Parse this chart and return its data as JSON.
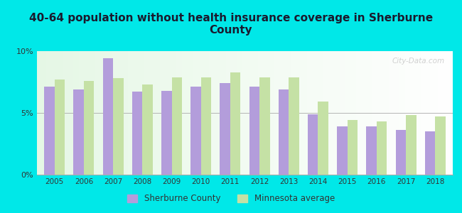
{
  "title": "40-64 population without health insurance coverage in Sherburne\nCounty",
  "years": [
    2005,
    2006,
    2007,
    2008,
    2009,
    2010,
    2011,
    2012,
    2013,
    2014,
    2015,
    2016,
    2017,
    2018
  ],
  "sherburne": [
    7.1,
    6.9,
    9.4,
    6.7,
    6.8,
    7.1,
    7.4,
    7.1,
    6.9,
    4.9,
    3.9,
    3.9,
    3.6,
    3.5
  ],
  "minnesota": [
    7.7,
    7.6,
    7.8,
    7.3,
    7.9,
    7.9,
    8.3,
    7.9,
    7.9,
    5.9,
    4.4,
    4.3,
    4.8,
    4.7
  ],
  "sherburne_color": "#b39ddb",
  "minnesota_color": "#c5e1a5",
  "background_outer": "#00e8e8",
  "ylim": [
    0,
    10
  ],
  "yticks": [
    0,
    5,
    10
  ],
  "ytick_labels": [
    "0%",
    "5%",
    "10%"
  ],
  "legend_sherburne": "Sherburne County",
  "legend_minnesota": "Minnesota average",
  "bar_width": 0.35,
  "title_fontsize": 11,
  "title_color": "#1a1a2e",
  "watermark": "City-Data.com"
}
